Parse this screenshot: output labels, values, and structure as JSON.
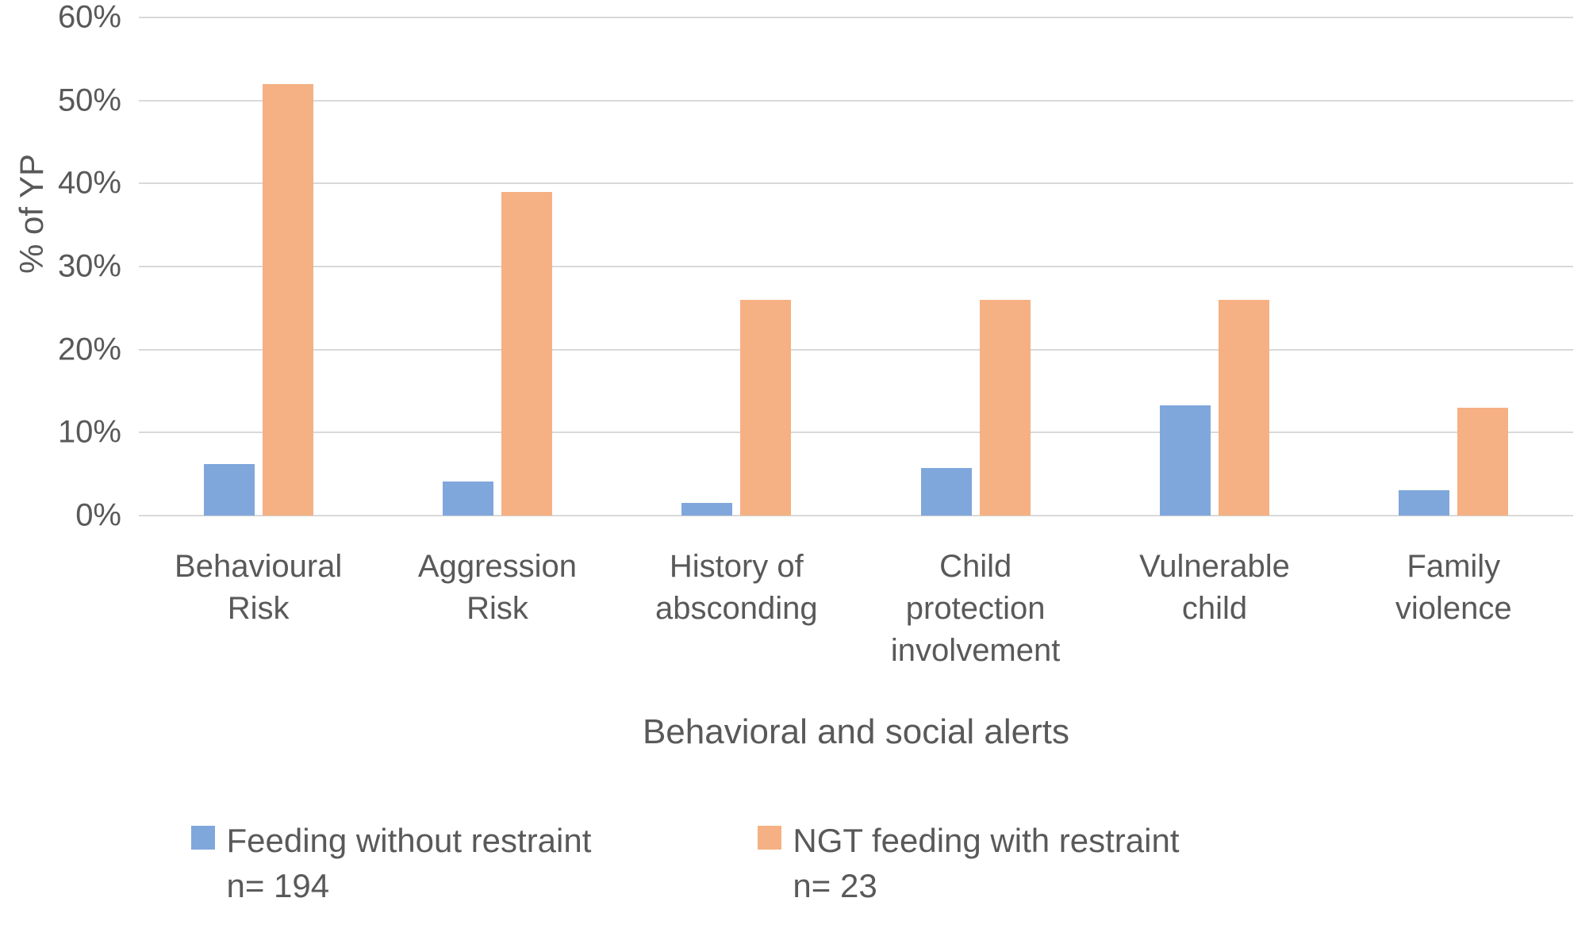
{
  "chart_data": {
    "type": "bar",
    "title": "",
    "xlabel": "Behavioral and social alerts",
    "ylabel": "% of YP",
    "ylim": [
      0,
      60
    ],
    "grid": true,
    "legend_position": "bottom",
    "categories": [
      "Behavioural Risk",
      "Aggression Risk",
      "History of absconding",
      "Child protection involvement",
      "Vulnerable child",
      "Family violence"
    ],
    "yticks": [
      {
        "label": "0%",
        "value": 0
      },
      {
        "label": "10%",
        "value": 10
      },
      {
        "label": "20%",
        "value": 20
      },
      {
        "label": "30%",
        "value": 30
      },
      {
        "label": "40%",
        "value": 40
      },
      {
        "label": "50%",
        "value": 50
      },
      {
        "label": "60%",
        "value": 60
      }
    ],
    "series": [
      {
        "name": "Feeding without restraint n= 194",
        "legend_line1": "Feeding without restraint",
        "legend_line2": "n= 194",
        "color": "#7FA7DB",
        "values": [
          6.2,
          4.1,
          1.5,
          5.7,
          13.3,
          3.1
        ]
      },
      {
        "name": "NGT feeding with restraint n= 23",
        "legend_line1": "NGT feeding with restraint",
        "legend_line2": "n= 23",
        "color": "#F5B183",
        "values": [
          52,
          39,
          26,
          26,
          26,
          13
        ]
      }
    ]
  }
}
